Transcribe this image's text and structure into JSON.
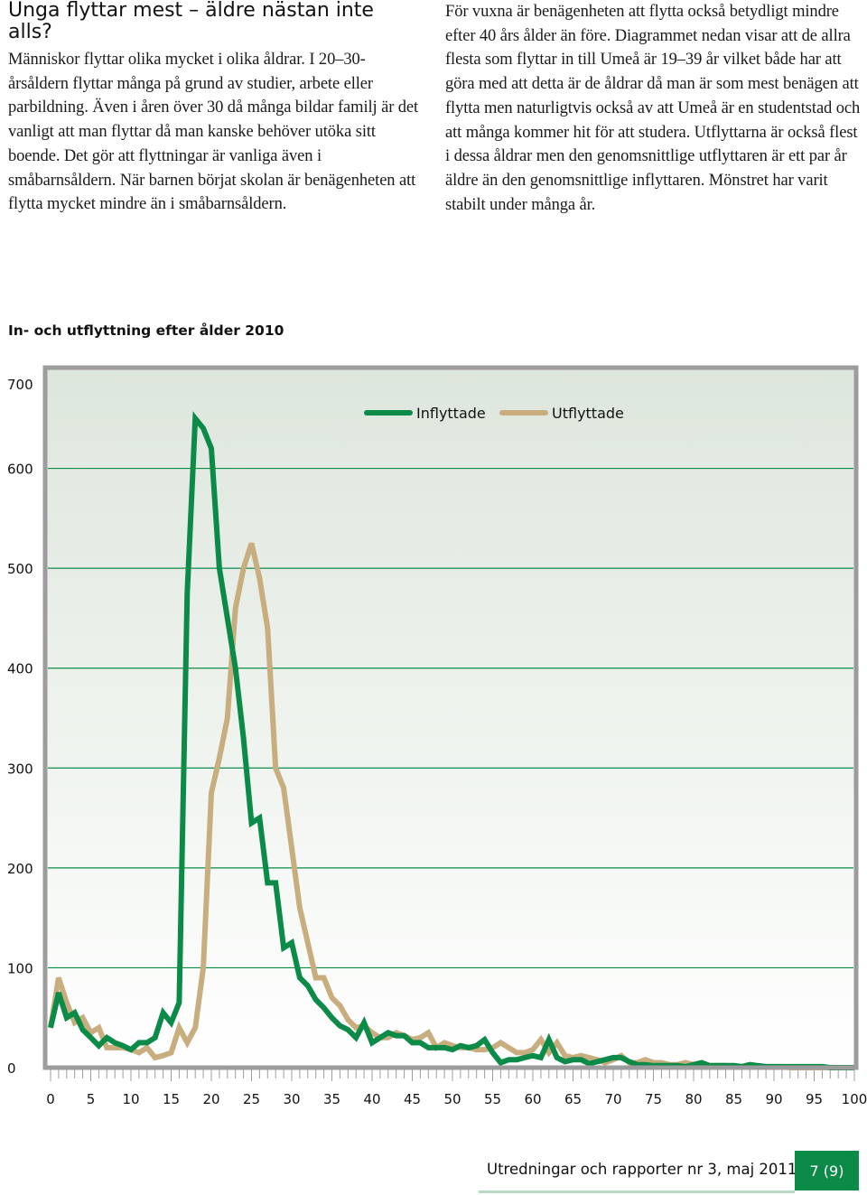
{
  "heading": "Unga flyttar mest – äldre nästan inte alls?",
  "left_text": "Människor flyttar olika mycket i olika åldrar. I 20–30-årsåldern flyttar många på grund av studier, arbete eller parbildning. Även i åren över 30 då många bildar familj är det vanligt att man flyttar då man kanske behöver utöka sitt boende. Det gör att flytt­ningar är vanliga även i småbarnsåldern. När barnen börjat skolan är benägenheten att flytta mycket mindre än i småbarnsåldern.",
  "right_text": "För vuxna är benägenheten att flytta också betydligt mindre efter 40 års ålder än före. Diagrammet nedan visar att de allra flesta som flyttar in till Umeå är 19–39 år vilket både har att göra med att detta är de åldrar då man är som mest benägen att flytta men natur­ligtvis också av att Umeå är en studentstad och att många kommer hit för att studera. Utflyttarna är också flest i dessa åldrar men den genomsnittlige utflyttaren är ett par år äldre än den genomsnittlige inflyttaren. Mönstret har varit stabilt under många år.",
  "footer": {
    "publication": "Utredningar och rapporter nr 3, maj 2011",
    "page": "7 (9)"
  },
  "colors": {
    "inflyttade": "#0b8a48",
    "utflyttade": "#c8ad7f",
    "plot_bg_top": "#dde6dc",
    "plot_bg_bottom": "#ffffff",
    "frame": "#9c9c9c",
    "grid": "#0b8a48",
    "badge": "#0b8a48"
  },
  "chart_data": {
    "type": "line",
    "title": "In- och utflyttning efter ålder 2010",
    "xlabel": "",
    "ylabel": "",
    "xlim": [
      0,
      100
    ],
    "ylim": [
      0,
      700
    ],
    "grid": true,
    "legend_position": "top-center",
    "x_ticks": [
      0,
      5,
      10,
      15,
      20,
      25,
      30,
      35,
      40,
      45,
      50,
      55,
      60,
      65,
      70,
      75,
      80,
      85,
      90,
      95,
      100
    ],
    "y_ticks": [
      0,
      100,
      200,
      300,
      400,
      500,
      600,
      700
    ],
    "x": [
      0,
      1,
      2,
      3,
      4,
      5,
      6,
      7,
      8,
      9,
      10,
      11,
      12,
      13,
      14,
      15,
      16,
      17,
      18,
      19,
      20,
      21,
      22,
      23,
      24,
      25,
      26,
      27,
      28,
      29,
      30,
      31,
      32,
      33,
      34,
      35,
      36,
      37,
      38,
      39,
      40,
      41,
      42,
      43,
      44,
      45,
      46,
      47,
      48,
      49,
      50,
      51,
      52,
      53,
      54,
      55,
      56,
      57,
      58,
      59,
      60,
      61,
      62,
      63,
      64,
      65,
      66,
      67,
      68,
      69,
      70,
      71,
      72,
      73,
      74,
      75,
      76,
      77,
      78,
      79,
      80,
      81,
      82,
      83,
      84,
      85,
      86,
      87,
      88,
      89,
      90,
      91,
      92,
      93,
      94,
      95,
      96,
      97,
      98,
      99,
      100
    ],
    "series": [
      {
        "name": "Inflyttade",
        "values": [
          40,
          75,
          50,
          55,
          38,
          30,
          22,
          30,
          25,
          22,
          18,
          25,
          25,
          30,
          55,
          45,
          65,
          475,
          650,
          640,
          620,
          500,
          450,
          400,
          330,
          245,
          250,
          185,
          185,
          120,
          125,
          90,
          82,
          68,
          60,
          50,
          42,
          38,
          30,
          45,
          25,
          30,
          35,
          32,
          32,
          25,
          25,
          20,
          20,
          20,
          18,
          22,
          20,
          22,
          28,
          15,
          5,
          8,
          8,
          10,
          12,
          10,
          28,
          10,
          6,
          8,
          8,
          4,
          6,
          8,
          10,
          10,
          6,
          3,
          3,
          2,
          2,
          2,
          2,
          1,
          3,
          5,
          2,
          2,
          2,
          2,
          1,
          3,
          2,
          1,
          1,
          1,
          1,
          1,
          1,
          1,
          1,
          0,
          0,
          0,
          0
        ]
      },
      {
        "name": "Utflyttade",
        "values": [
          40,
          90,
          65,
          45,
          50,
          35,
          40,
          20,
          20,
          20,
          18,
          15,
          20,
          10,
          12,
          15,
          40,
          25,
          40,
          100,
          275,
          310,
          350,
          460,
          500,
          525,
          490,
          440,
          300,
          280,
          220,
          160,
          125,
          90,
          90,
          70,
          62,
          48,
          40,
          42,
          35,
          30,
          30,
          35,
          32,
          28,
          30,
          35,
          20,
          25,
          22,
          20,
          20,
          18,
          18,
          20,
          25,
          20,
          15,
          15,
          18,
          28,
          15,
          25,
          12,
          10,
          12,
          10,
          8,
          5,
          8,
          12,
          5,
          5,
          8,
          5,
          5,
          3,
          3,
          5,
          3,
          3,
          2,
          2,
          2,
          1,
          1,
          2,
          1,
          1,
          1,
          1,
          0,
          0,
          0,
          0,
          0,
          0,
          0,
          0,
          0
        ]
      }
    ]
  }
}
